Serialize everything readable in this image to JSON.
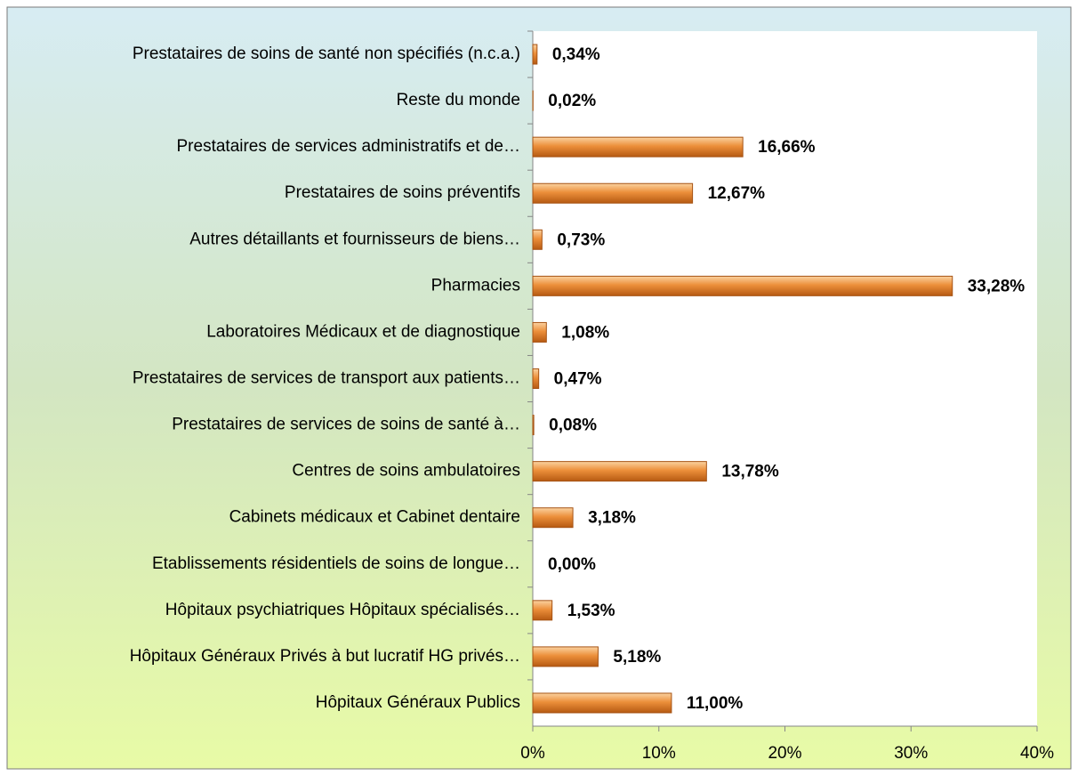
{
  "chart_data": {
    "type": "hbar",
    "categories": [
      "Prestataires de soins de santé non spécifiés (n.c.a.)",
      "Reste du monde",
      "Prestataires de services administratifs et de…",
      "Prestataires de soins préventifs",
      "Autres détaillants et fournisseurs de biens…",
      "Pharmacies",
      "Laboratoires Médicaux et de diagnostique",
      "Prestataires de services de transport aux patients…",
      "Prestataires de services de soins de santé à…",
      "Centres de soins ambulatoires",
      "Cabinets médicaux et Cabinet dentaire",
      "Etablissements résidentiels de soins de longue…",
      "Hôpitaux psychiatriques Hôpitaux spécialisés…",
      "Hôpitaux Généraux Privés à but lucratif HG privés…",
      "Hôpitaux Généraux Publics"
    ],
    "values": [
      0.34,
      0.02,
      16.66,
      12.67,
      0.73,
      33.28,
      1.08,
      0.47,
      0.08,
      13.78,
      3.18,
      0.0,
      1.53,
      5.18,
      11.0
    ],
    "value_labels": [
      "0,34%",
      "0,02%",
      "16,66%",
      "12,67%",
      "0,73%",
      "33,28%",
      "1,08%",
      "0,47%",
      "0,08%",
      "13,78%",
      "3,18%",
      "0,00%",
      "1,53%",
      "5,18%",
      "11,00%"
    ],
    "color": "#e8852a",
    "xlim": [
      0,
      40
    ],
    "xticks": [
      {
        "value": 0,
        "label": "0%"
      },
      {
        "value": 10,
        "label": "10%"
      },
      {
        "value": 20,
        "label": "20%"
      },
      {
        "value": 30,
        "label": "30%"
      },
      {
        "value": 40,
        "label": "40%"
      }
    ]
  }
}
